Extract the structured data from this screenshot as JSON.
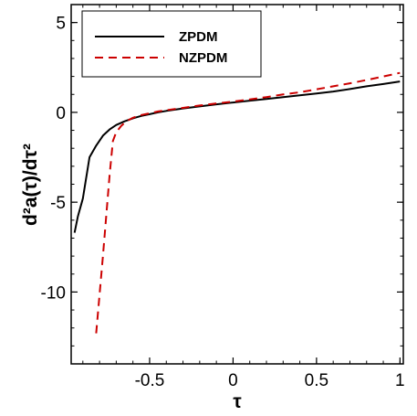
{
  "chart_data": {
    "type": "line",
    "xlabel": "τ",
    "ylabel": "d²a(τ)/dτ²",
    "xlim": [
      -0.97,
      1.02
    ],
    "ylim": [
      -14,
      6
    ],
    "xticks": [
      -0.5,
      0,
      0.5,
      1
    ],
    "xtick_labels": [
      "-0.5",
      "0",
      "0.5",
      "1"
    ],
    "yticks": [
      -10,
      -5,
      0,
      5
    ],
    "ytick_labels": [
      "-10",
      "-5",
      "0",
      "5"
    ],
    "grid": false,
    "legend_position": "top-left",
    "series": [
      {
        "name": "ZPDM",
        "color": "#000000",
        "dash": "solid",
        "x": [
          -0.95,
          -0.93,
          -0.9,
          -0.86,
          -0.82,
          -0.78,
          -0.74,
          -0.7,
          -0.65,
          -0.6,
          -0.55,
          -0.5,
          -0.45,
          -0.4,
          -0.3,
          -0.2,
          -0.1,
          0,
          0.1,
          0.2,
          0.3,
          0.4,
          0.5,
          0.6,
          0.7,
          0.8,
          0.9,
          1.0
        ],
        "y": [
          -6.7,
          -5.8,
          -4.8,
          -2.5,
          -1.85,
          -1.3,
          -0.95,
          -0.7,
          -0.5,
          -0.33,
          -0.2,
          -0.1,
          0.0,
          0.08,
          0.22,
          0.33,
          0.45,
          0.55,
          0.65,
          0.75,
          0.85,
          0.95,
          1.05,
          1.16,
          1.3,
          1.45,
          1.58,
          1.72
        ]
      },
      {
        "name": "NZPDM",
        "color": "#cc0000",
        "dash": "dashed",
        "x": [
          -0.82,
          -0.78,
          -0.74,
          -0.72,
          -0.7,
          -0.67,
          -0.64,
          -0.6,
          -0.55,
          -0.5,
          -0.45,
          -0.4,
          -0.3,
          -0.2,
          -0.1,
          0,
          0.1,
          0.2,
          0.3,
          0.4,
          0.5,
          0.6,
          0.7,
          0.8,
          0.9,
          1.0
        ],
        "y": [
          -12.3,
          -8.0,
          -3.5,
          -1.6,
          -1.1,
          -0.75,
          -0.5,
          -0.3,
          -0.15,
          -0.05,
          0.05,
          0.12,
          0.25,
          0.38,
          0.5,
          0.6,
          0.72,
          0.85,
          1.0,
          1.12,
          1.28,
          1.45,
          1.62,
          1.8,
          2.0,
          2.2
        ]
      }
    ]
  }
}
